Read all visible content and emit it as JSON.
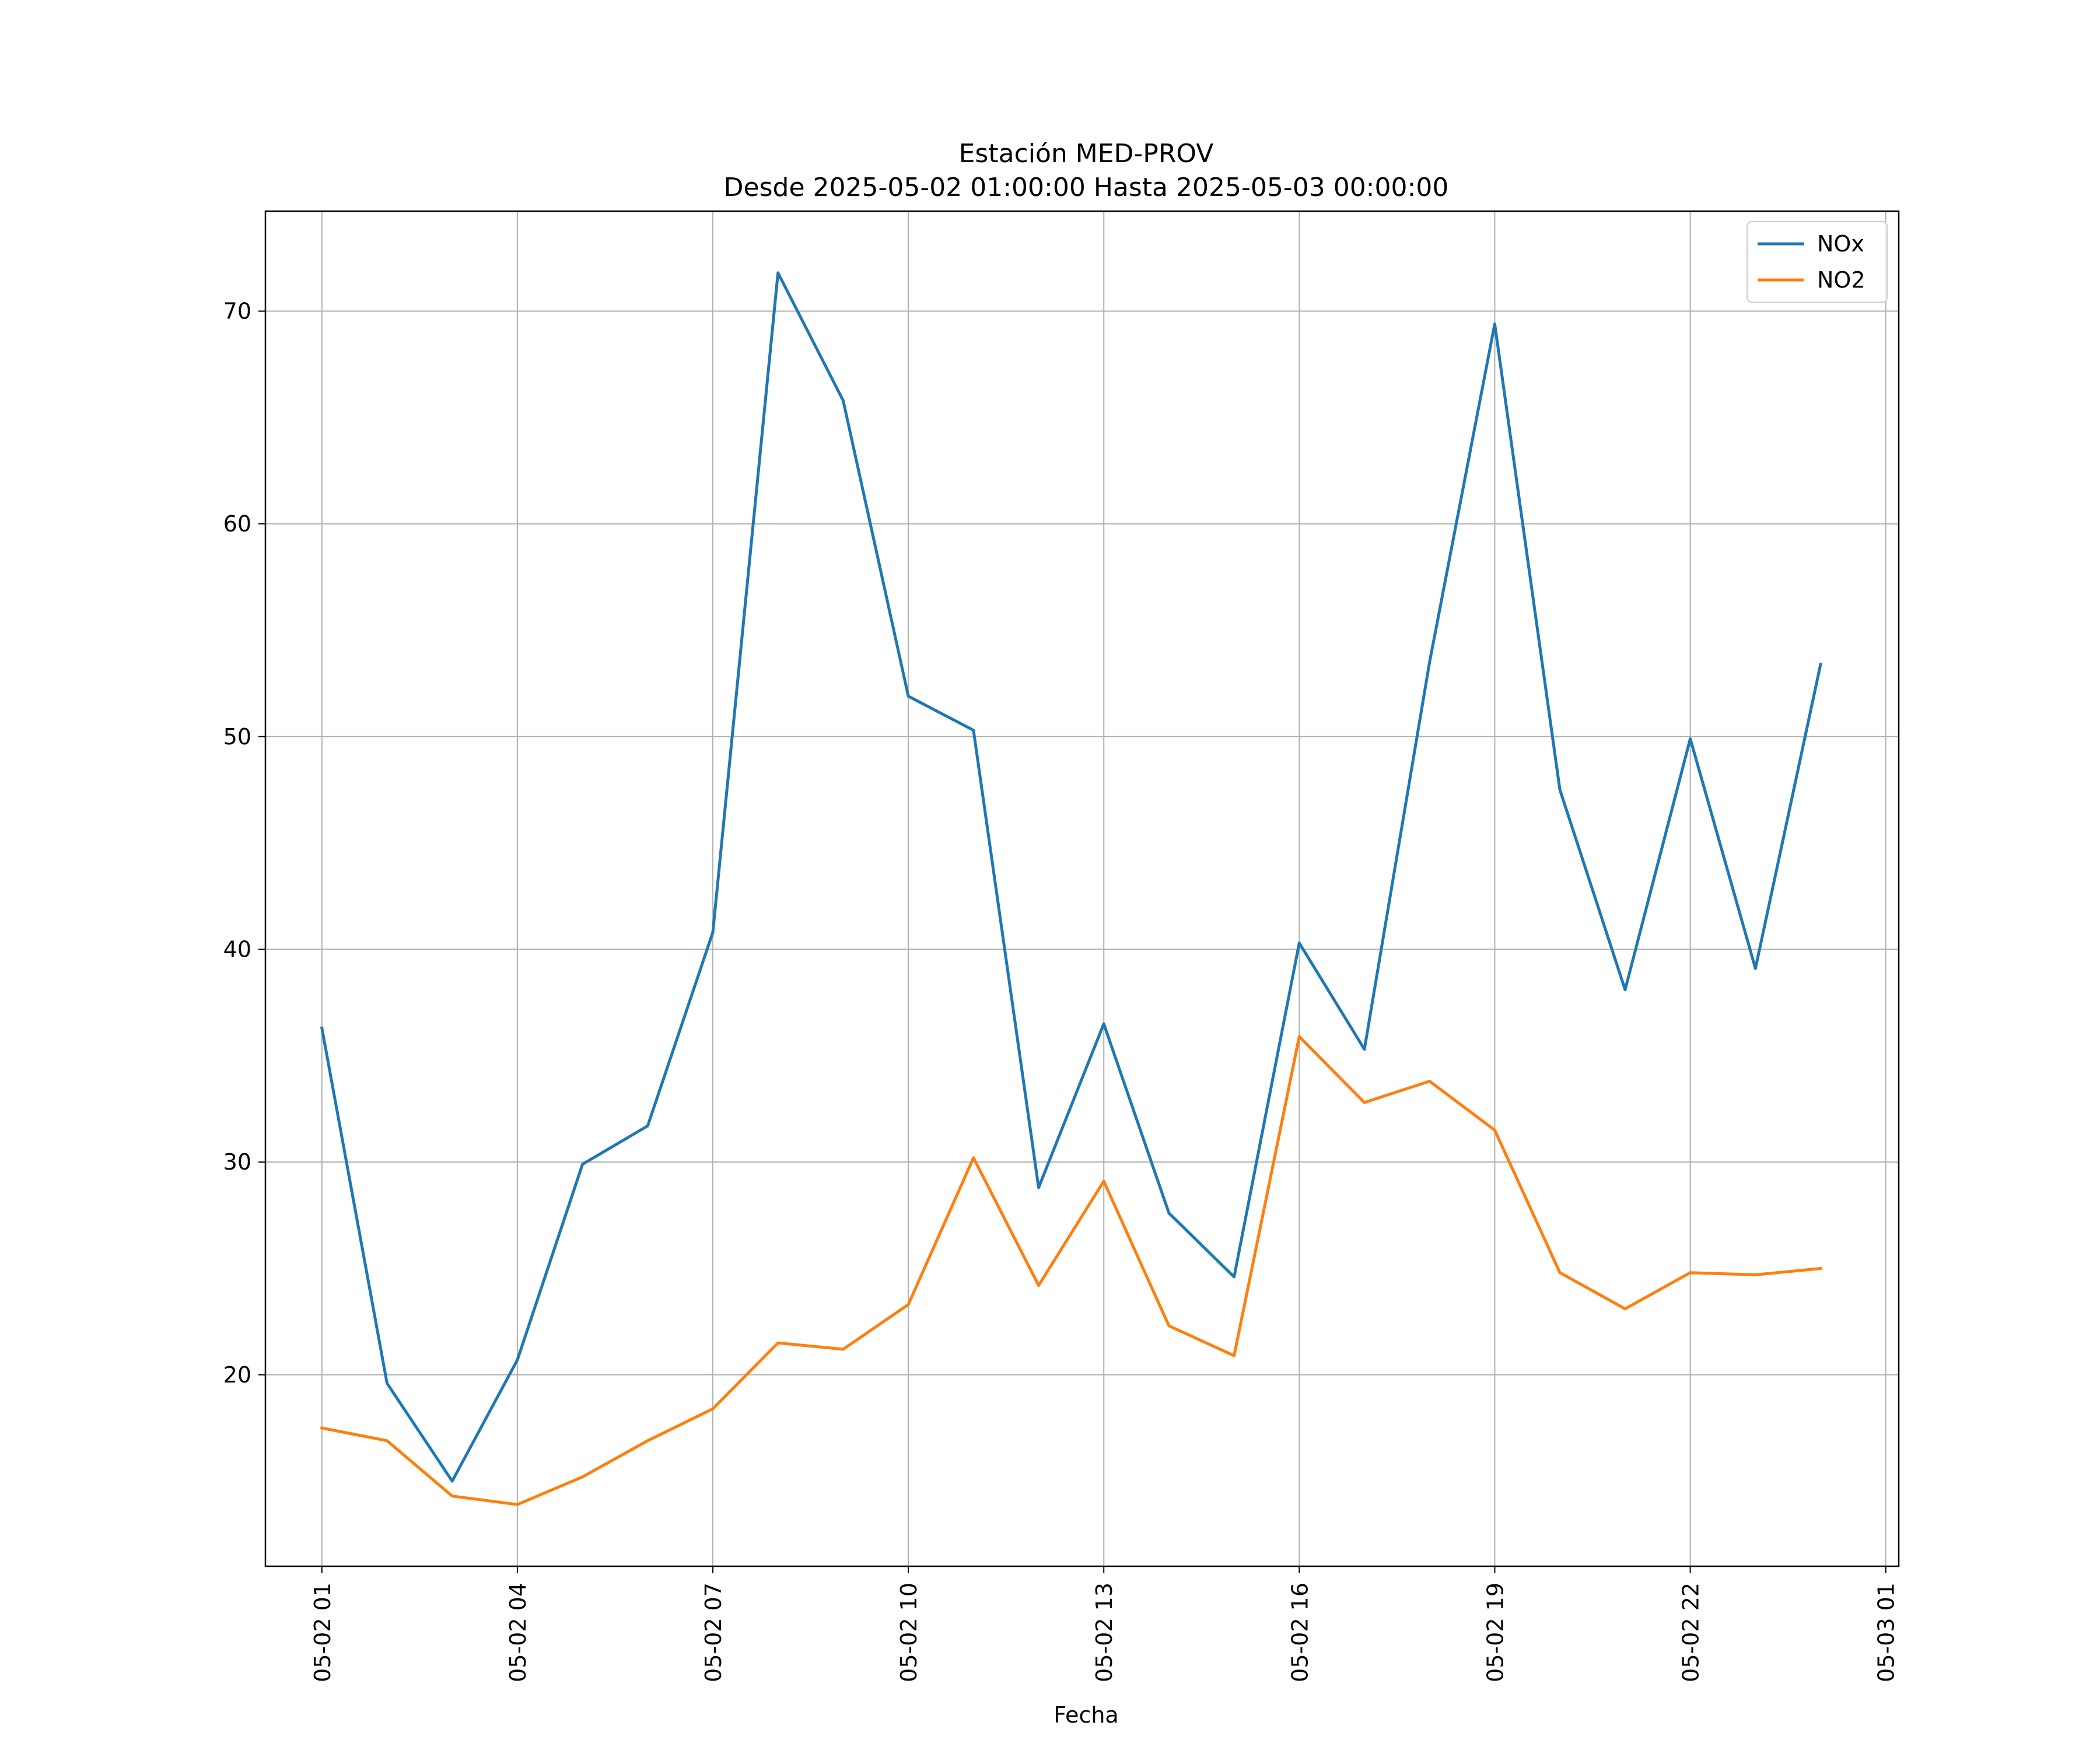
{
  "chart_data": {
    "type": "line",
    "title": "Estación MED-PROV",
    "subtitle": "Desde 2025-05-02 01:00:00 Hasta 2025-05-03 00:00:00",
    "xlabel": "Fecha",
    "ylabel": "",
    "x": [
      "2025-05-02 01:00",
      "2025-05-02 02:00",
      "2025-05-02 03:00",
      "2025-05-02 04:00",
      "2025-05-02 05:00",
      "2025-05-02 06:00",
      "2025-05-02 07:00",
      "2025-05-02 08:00",
      "2025-05-02 09:00",
      "2025-05-02 10:00",
      "2025-05-02 11:00",
      "2025-05-02 12:00",
      "2025-05-02 13:00",
      "2025-05-02 14:00",
      "2025-05-02 15:00",
      "2025-05-02 16:00",
      "2025-05-02 17:00",
      "2025-05-02 18:00",
      "2025-05-02 19:00",
      "2025-05-02 20:00",
      "2025-05-02 21:00",
      "2025-05-02 22:00",
      "2025-05-02 23:00",
      "2025-05-03 00:00"
    ],
    "xlim": [
      "2025-05-02 00:08",
      "2025-05-03 01:12"
    ],
    "ylim": [
      11,
      74.7
    ],
    "xticks": [
      {
        "label": "05-02 01",
        "x": "2025-05-02 01:00"
      },
      {
        "label": "05-02 04",
        "x": "2025-05-02 04:00"
      },
      {
        "label": "05-02 07",
        "x": "2025-05-02 07:00"
      },
      {
        "label": "05-02 10",
        "x": "2025-05-02 10:00"
      },
      {
        "label": "05-02 13",
        "x": "2025-05-02 13:00"
      },
      {
        "label": "05-02 16",
        "x": "2025-05-02 16:00"
      },
      {
        "label": "05-02 19",
        "x": "2025-05-02 19:00"
      },
      {
        "label": "05-02 22",
        "x": "2025-05-02 22:00"
      },
      {
        "label": "05-03 01",
        "x": "2025-05-03 01:00"
      }
    ],
    "yticks": [
      20,
      30,
      40,
      50,
      60,
      70
    ],
    "grid": true,
    "legend": "top-right",
    "series": [
      {
        "name": "NOx",
        "color": "#1f77b4",
        "values": [
          36.3,
          19.6,
          15.0,
          20.7,
          29.9,
          31.7,
          40.8,
          71.8,
          65.8,
          51.9,
          50.3,
          28.8,
          36.5,
          27.6,
          24.6,
          40.3,
          35.3,
          53.5,
          69.4,
          47.5,
          38.1,
          49.9,
          39.1,
          53.4
        ]
      },
      {
        "name": "NO2",
        "color": "#ff7f0e",
        "values": [
          17.5,
          16.9,
          14.3,
          13.9,
          15.2,
          16.9,
          18.4,
          21.5,
          21.2,
          23.3,
          30.2,
          24.2,
          29.1,
          22.3,
          20.9,
          35.9,
          32.8,
          33.8,
          31.5,
          24.8,
          23.1,
          24.8,
          24.7,
          25.0
        ]
      }
    ]
  }
}
